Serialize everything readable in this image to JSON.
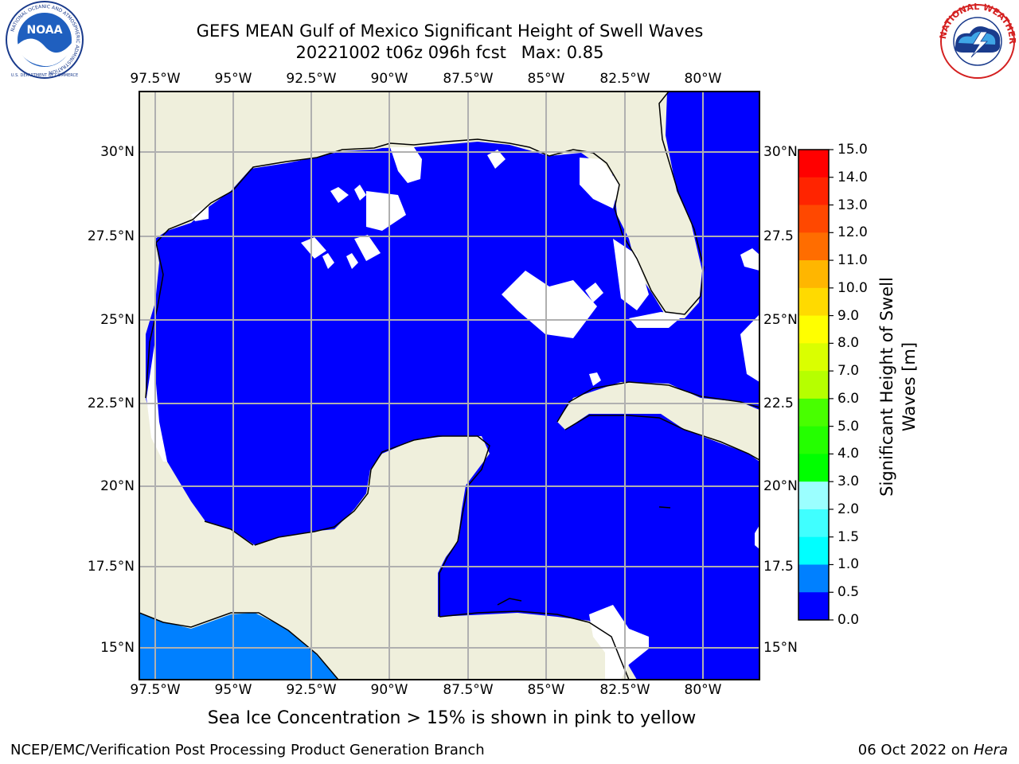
{
  "header": {
    "title": "GEFS MEAN Gulf of Mexico Significant Height of Swell Waves",
    "run": "20221002 t06z 096h fcst",
    "max_label": "Max: 0.85"
  },
  "logos": {
    "left": {
      "name": "NOAA",
      "ring_text": "NATIONAL OCEANIC AND ATMOSPHERIC ADMINISTRATION",
      "bottom_text": "U.S. DEPARTMENT OF COMMERCE"
    },
    "right": {
      "ring_text": "NATIONAL WEATHER SERVICE"
    }
  },
  "map": {
    "lon_ticks_top": [
      "97.5°W",
      "95°W",
      "92.5°W",
      "90°W",
      "87.5°W",
      "85°W",
      "82.5°W",
      "80°W"
    ],
    "lon_ticks_bottom": [
      "97.5°W",
      "95°W",
      "92.5°W",
      "90°W",
      "87.5°W",
      "85°W",
      "82.5°W",
      "80°W"
    ],
    "lat_ticks_left": [
      "30°N",
      "27.5°N",
      "25°N",
      "22.5°N",
      "20°N",
      "17.5°N",
      "15°N"
    ],
    "lat_ticks_right": [
      "30°N",
      "27.5",
      "25°N",
      "22.5",
      "20°N",
      "17.5",
      "15°N"
    ],
    "lon_values": [
      -97.5,
      -95,
      -92.5,
      -90,
      -87.5,
      -85,
      -82.5,
      -80
    ],
    "lat_values": [
      30,
      27.5,
      25,
      22.5,
      20,
      17.5,
      15
    ],
    "extent": {
      "lon": [
        -98,
        -78.2
      ],
      "lat": [
        14,
        31.7
      ]
    },
    "colors": {
      "land": "#efefdc",
      "ocean_value_0": "#0000ff",
      "ocean_value_05": "#0080ff",
      "grid": "#b0b0b0",
      "no_data": "#ffffff"
    }
  },
  "colorbar": {
    "label": "Significant Height of Swell Waves [m]",
    "ticks": [
      "15.0",
      "14.0",
      "13.0",
      "12.0",
      "11.0",
      "10.0",
      "9.0",
      "8.0",
      "7.0",
      "6.0",
      "5.0",
      "4.0",
      "3.0",
      "2.0",
      "1.5",
      "1.0",
      "0.5",
      "0.0"
    ],
    "colors": [
      "#ff0000",
      "#ff2400",
      "#ff4800",
      "#ff6d00",
      "#ff9100",
      "#ffb600",
      "#ffda00",
      "#ffff00",
      "#daff00",
      "#b6ff00",
      "#48ff00",
      "#24ff00",
      "#00ff00",
      "#4dff80",
      "#9bffff",
      "#40ffff",
      "#00ffff",
      "#0080ff",
      "#0000ff"
    ]
  },
  "caption": "Sea Ice Concentration > 15% is shown in pink to yellow",
  "footer": {
    "left": "NCEP/EMC/Verification Post Processing Product Generation Branch",
    "right_date": "06 Oct 2022 on ",
    "right_host": "Hera"
  }
}
